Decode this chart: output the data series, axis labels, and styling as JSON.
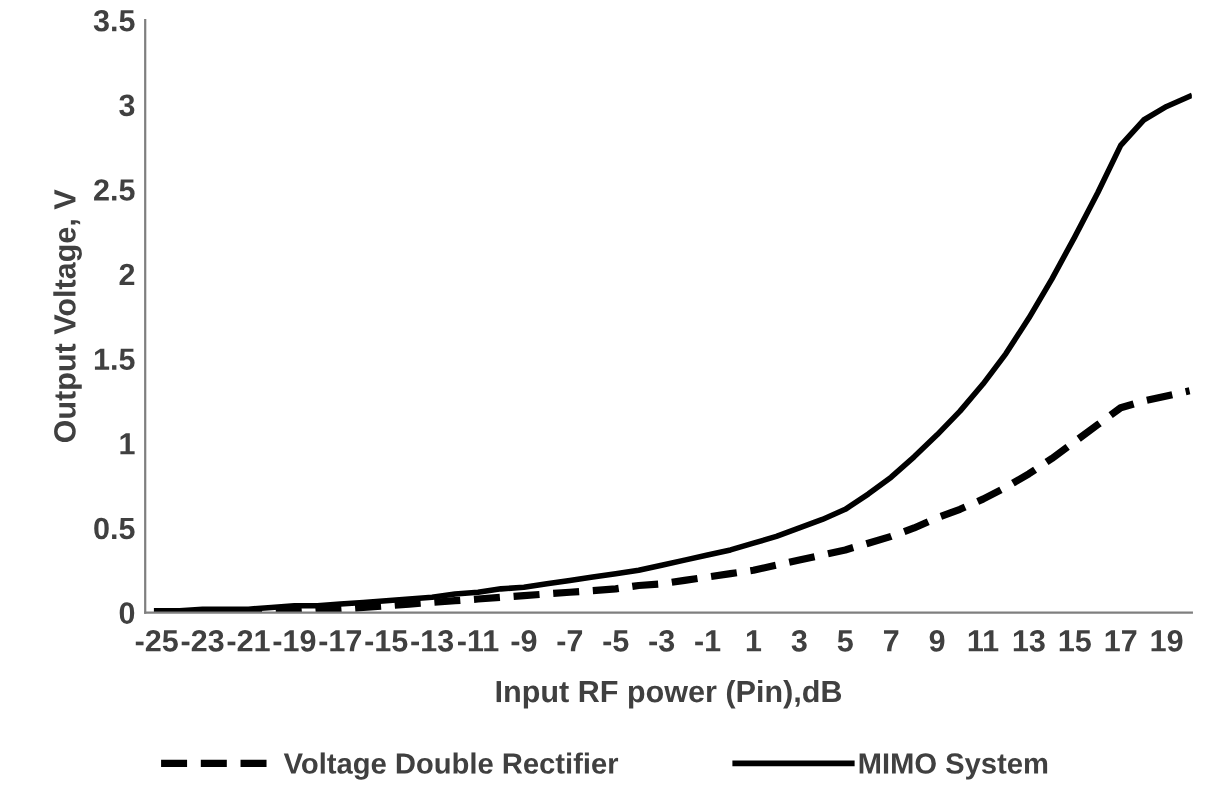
{
  "chart_data": {
    "type": "line",
    "xlabel": "Input RF power (Pin),dB",
    "ylabel": "Output Voltage, V",
    "categories": [
      "-25",
      null,
      "-23",
      null,
      "-21",
      null,
      "-19",
      null,
      "-17",
      null,
      "-15",
      null,
      "-13",
      null,
      "-11",
      null,
      "-9",
      null,
      "-7",
      null,
      "-5",
      null,
      "-3",
      null,
      "-1",
      null,
      "1",
      null,
      "3",
      null,
      "5",
      null,
      "7",
      null,
      "9",
      null,
      "11",
      null,
      "13",
      null,
      "15",
      null,
      "17",
      null,
      "19",
      null
    ],
    "series": [
      {
        "name": "Voltage Double Rectifier",
        "color": "#000000",
        "line_style": "dashed",
        "values": [
          0,
          0,
          0,
          0.01,
          0.01,
          0.01,
          0.01,
          0.02,
          0.02,
          0.03,
          0.04,
          0.05,
          0.06,
          0.07,
          0.08,
          0.09,
          0.1,
          0.11,
          0.12,
          0.13,
          0.14,
          0.16,
          0.17,
          0.19,
          0.21,
          0.23,
          0.25,
          0.28,
          0.31,
          0.34,
          0.37,
          0.41,
          0.45,
          0.5,
          0.56,
          0.61,
          0.67,
          0.74,
          0.82,
          0.91,
          1.01,
          1.11,
          1.21,
          1.25,
          1.28,
          1.31
        ]
      },
      {
        "name": "MIMO System",
        "color": "#000000",
        "line_style": "solid",
        "values": [
          0.01,
          0.01,
          0.02,
          0.02,
          0.02,
          0.03,
          0.04,
          0.04,
          0.05,
          0.06,
          0.07,
          0.08,
          0.09,
          0.11,
          0.12,
          0.14,
          0.15,
          0.17,
          0.19,
          0.21,
          0.23,
          0.25,
          0.28,
          0.31,
          0.34,
          0.37,
          0.41,
          0.45,
          0.5,
          0.55,
          0.61,
          0.7,
          0.8,
          0.92,
          1.05,
          1.19,
          1.35,
          1.53,
          1.74,
          1.97,
          2.22,
          2.48,
          2.76,
          2.91,
          2.99,
          3.05
        ]
      }
    ],
    "ylim": [
      0,
      3.5
    ],
    "yticks": [
      0,
      0.5,
      1,
      1.5,
      2,
      2.5,
      3,
      3.5
    ],
    "grid": false,
    "legend": "bottom",
    "marker": "none"
  }
}
